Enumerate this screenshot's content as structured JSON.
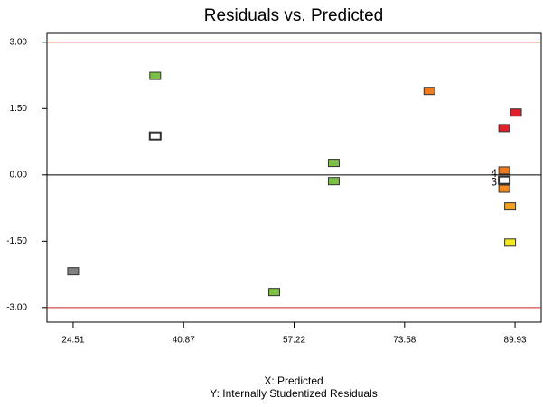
{
  "chart_data": {
    "type": "scatter",
    "title": "Residuals vs. Predicted",
    "x_label": "X: Predicted",
    "y_label": "Y: Internally Studentized Residuals",
    "x": [
      24.51,
      36.66,
      36.66,
      54.28,
      63.1,
      63.1,
      77.25,
      90.06,
      88.33,
      88.33,
      88.33,
      88.33,
      89.2,
      89.2
    ],
    "y": [
      -2.18,
      2.24,
      0.88,
      -2.65,
      0.27,
      -0.14,
      1.9,
      1.41,
      1.06,
      0.1,
      -0.12,
      -0.31,
      -0.71,
      -1.53
    ],
    "colors": [
      "#808080",
      "#7ac143",
      "#ffffff",
      "#7ac143",
      "#7ac143",
      "#7ac143",
      "#f07a20",
      "#e0202a",
      "#e0202a",
      "#f07a20",
      "#ffffff",
      "#f58a20",
      "#f5a020",
      "#f5e820"
    ],
    "xlim": [
      20.64,
      93.8
    ],
    "ylim": [
      -3.33,
      3.2
    ],
    "xticks": [
      24.51,
      40.87,
      57.22,
      73.58,
      89.93
    ],
    "yticks": [
      {
        "value": -3,
        "label": "-3.00"
      },
      {
        "value": -1.5,
        "label": "-1.50"
      },
      {
        "value": 0,
        "label": "0.00"
      },
      {
        "value": 1.5,
        "label": "1.50"
      },
      {
        "value": 3,
        "label": "3.00"
      }
    ],
    "reference_lines": [
      {
        "value": 3,
        "color": "#cc2020"
      },
      {
        "value": 0,
        "color": "#000000"
      },
      {
        "value": -3,
        "color": "#cc2020"
      }
    ],
    "annotations": [
      {
        "text": "4",
        "x": 88.33,
        "y": 0.02
      },
      {
        "text": "3",
        "x": 88.33,
        "y": -0.17
      }
    ]
  }
}
